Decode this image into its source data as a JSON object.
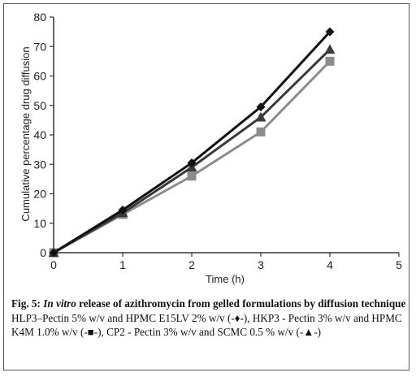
{
  "chart_data": {
    "type": "line",
    "xlabel": "Time (h)",
    "ylabel": "Cumulative percentage drug diffusion",
    "xlim": [
      0,
      5
    ],
    "ylim": [
      0,
      80
    ],
    "x_ticks": [
      "0",
      "1",
      "2",
      "3",
      "4",
      "5"
    ],
    "y_ticks": [
      "0",
      "10",
      "20",
      "30",
      "40",
      "50",
      "60",
      "70",
      "80"
    ],
    "grid": false,
    "series": [
      {
        "marker": "diamond",
        "color": "#111111",
        "x": [
          0,
          1,
          2,
          3,
          4
        ],
        "values": [
          0,
          14.5,
          30.5,
          49.5,
          75
        ]
      },
      {
        "marker": "square",
        "color": "#8c8c8c",
        "x": [
          0,
          1,
          2,
          3,
          4
        ],
        "values": [
          0,
          13,
          26,
          41,
          65
        ]
      },
      {
        "marker": "triangle",
        "color": "#3a3a3a",
        "x": [
          0,
          1,
          2,
          3,
          4
        ],
        "values": [
          0,
          13.5,
          29,
          46,
          69
        ]
      }
    ]
  },
  "caption": {
    "label": "Fig. 5:",
    "title_italic": "In vitro",
    "title_rest": "release of azithromycin from gelled formulations by diffusion technique",
    "legend_text": "HLP3–Pectin 5% w/v and HPMC E15LV 2% w/v (-♦-), HKP3 - Pectin 3% w/v and HPMC K4M 1.0% w/v (-■-), CP2 - Pectin 3% w/v and SCMC 0.5 % w/v (-▲-)"
  }
}
